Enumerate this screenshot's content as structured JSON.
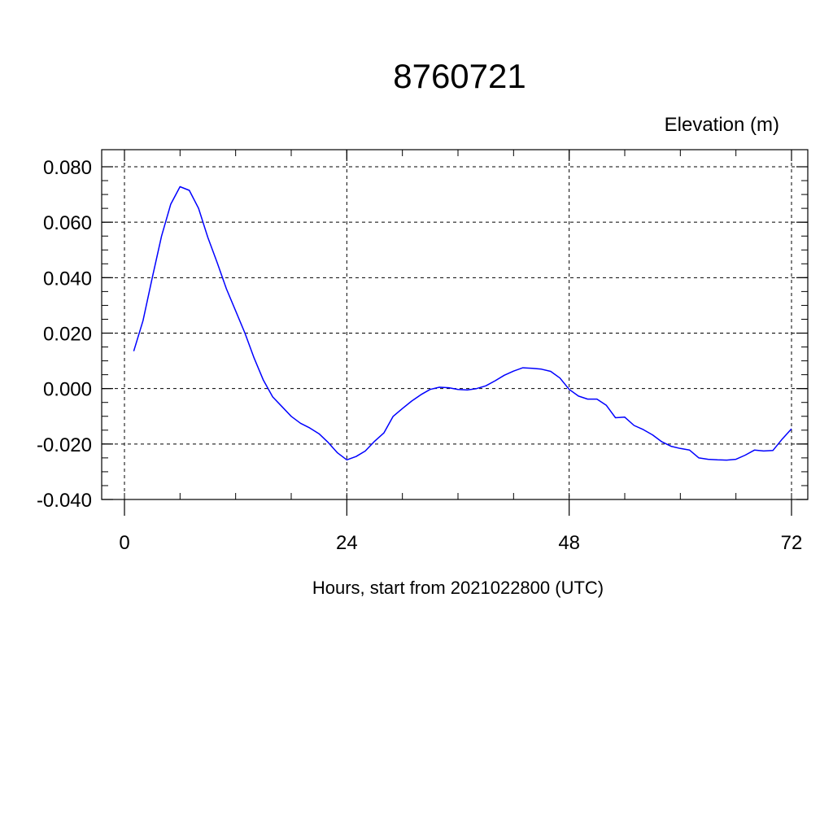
{
  "chart_data": {
    "type": "line",
    "title": "8760721",
    "ylabel_right": "Elevation (m)",
    "xlabel": "Hours, start from 2021022800 (UTC)",
    "xlim": [
      0,
      72
    ],
    "ylim": [
      -0.04,
      0.08
    ],
    "xticks": [
      0,
      24,
      48,
      72
    ],
    "xtick_labels": [
      "0",
      "24",
      "48",
      "72"
    ],
    "yticks": [
      -0.04,
      -0.02,
      0.0,
      0.02,
      0.04,
      0.06,
      0.08
    ],
    "ytick_labels": [
      "-0.040",
      "-0.020",
      "0.000",
      "0.020",
      "0.040",
      "0.060",
      "0.080"
    ],
    "grid": true,
    "series": [
      {
        "color": "#0000ff",
        "x": [
          1,
          2,
          3,
          4,
          5,
          6,
          7,
          8,
          9,
          10,
          11,
          12,
          13,
          14,
          15,
          16,
          17,
          18,
          19,
          20,
          21,
          22,
          23,
          24,
          25,
          26,
          27,
          28,
          29,
          30,
          31,
          32,
          33,
          34,
          35,
          36,
          37,
          38,
          39,
          40,
          41,
          42,
          43,
          44,
          45,
          46,
          47,
          48,
          49,
          50,
          51,
          52,
          53,
          54,
          55,
          56,
          57,
          58,
          59,
          60,
          61,
          62,
          63,
          64,
          65,
          66,
          67,
          68,
          69,
          70,
          71,
          72
        ],
        "y": [
          0.0135,
          0.0245,
          0.04,
          0.055,
          0.0665,
          0.0728,
          0.0715,
          0.065,
          0.0545,
          0.0455,
          0.036,
          0.028,
          0.02,
          0.011,
          0.003,
          -0.003,
          -0.0065,
          -0.01,
          -0.0125,
          -0.0142,
          -0.0163,
          -0.0195,
          -0.0232,
          -0.0257,
          -0.0245,
          -0.0225,
          -0.019,
          -0.016,
          -0.01,
          -0.0072,
          -0.0045,
          -0.0022,
          -0.0003,
          0.0005,
          0.0003,
          -0.0003,
          -0.0005,
          0.0,
          0.001,
          0.0028,
          0.0048,
          0.0063,
          0.0075,
          0.0073,
          0.007,
          0.0062,
          0.0038,
          -0.0003,
          -0.0027,
          -0.0038,
          -0.0038,
          -0.006,
          -0.0105,
          -0.0103,
          -0.0133,
          -0.0148,
          -0.0167,
          -0.0192,
          -0.0208,
          -0.0216,
          -0.0222,
          -0.025,
          -0.0255,
          -0.0257,
          -0.0258,
          -0.0255,
          -0.024,
          -0.0222,
          -0.0225,
          -0.0223,
          -0.0182,
          -0.0145
        ]
      }
    ]
  }
}
